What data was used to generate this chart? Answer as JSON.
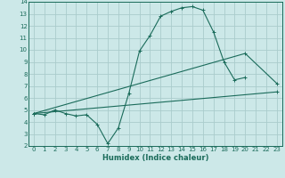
{
  "xlabel": "Humidex (Indice chaleur)",
  "bg_color": "#cce8e8",
  "grid_color": "#aacccc",
  "line_color": "#1a6b5a",
  "xlim": [
    -0.5,
    23.5
  ],
  "ylim": [
    2,
    14
  ],
  "xticks": [
    0,
    1,
    2,
    3,
    4,
    5,
    6,
    7,
    8,
    9,
    10,
    11,
    12,
    13,
    14,
    15,
    16,
    17,
    18,
    19,
    20,
    21,
    22,
    23
  ],
  "yticks": [
    2,
    3,
    4,
    5,
    6,
    7,
    8,
    9,
    10,
    11,
    12,
    13,
    14
  ],
  "line1_x": [
    0,
    1,
    2,
    3,
    4,
    5,
    6,
    7,
    8,
    9,
    10,
    11,
    12,
    13,
    14,
    15,
    16,
    17,
    18,
    19,
    20,
    21
  ],
  "line1_y": [
    4.7,
    4.6,
    5.0,
    4.7,
    4.5,
    4.6,
    3.8,
    2.2,
    3.5,
    6.4,
    9.9,
    11.2,
    12.8,
    13.2,
    13.5,
    13.6,
    13.3,
    11.5,
    9.0,
    7.5,
    7.7,
    null
  ],
  "line2_x": [
    0,
    23
  ],
  "line2_y": [
    4.7,
    6.5
  ],
  "line3_x": [
    0,
    20,
    23
  ],
  "line3_y": [
    4.7,
    9.7,
    7.2
  ],
  "marker": "+"
}
